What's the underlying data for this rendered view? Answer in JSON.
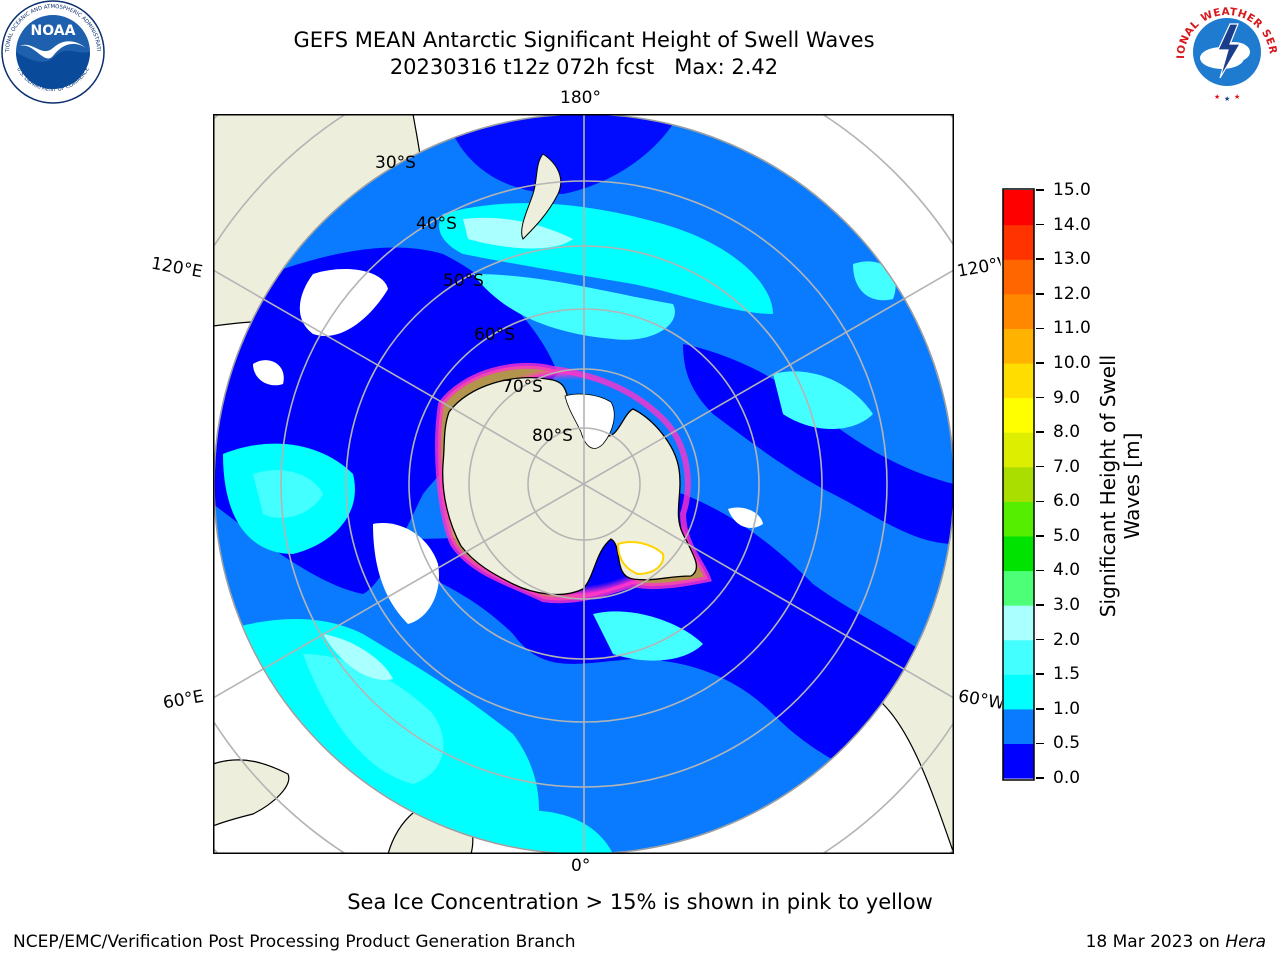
{
  "title": {
    "line1": "GEFS MEAN Antarctic Significant Height of Swell Waves",
    "line2": "20230316 t12z 072h fcst   Max: 2.42"
  },
  "map": {
    "projection": "south-polar-stereographic",
    "lon_labels": {
      "top": "180°",
      "bottom": "0°",
      "upper_left": "120°E",
      "lower_left": "60°E",
      "upper_right": "120°W",
      "lower_right": "60°W"
    },
    "lat_labels": [
      "30°S",
      "40°S",
      "50°S",
      "60°S",
      "70°S",
      "80°S"
    ],
    "colors": {
      "land": "#EEEEDC",
      "ice": "#FFFFFF",
      "grid": "#B4B4B4",
      "sea_ice_low": "#FF33CC",
      "sea_ice_high": "#FFD400"
    }
  },
  "colorbar": {
    "label_line1": "Significant Height of Swell",
    "label_line2": "Waves [m]",
    "ticks": [
      "0.0",
      "0.5",
      "1.0",
      "1.5",
      "2.0",
      "3.0",
      "4.0",
      "5.0",
      "6.0",
      "7.0",
      "8.0",
      "9.0",
      "10.0",
      "11.0",
      "12.0",
      "13.0",
      "14.0",
      "15.0"
    ],
    "colors": [
      "#0000FF",
      "#0A7BFF",
      "#00FFFF",
      "#44FFFF",
      "#AAFFFF",
      "#4DFF77",
      "#00E300",
      "#55EE00",
      "#AADD00",
      "#DDEE00",
      "#FFFF00",
      "#FFDD00",
      "#FFB300",
      "#FF8800",
      "#FF6600",
      "#FF3300",
      "#FF0000"
    ]
  },
  "subtitle": "Sea Ice Concentration > 15% is shown in pink to yellow",
  "footer": {
    "left": "NCEP/EMC/Verification Post Processing Product Generation Branch",
    "date": "18 Mar 2023 on ",
    "host": "Hera"
  },
  "logos": {
    "noaa": {
      "text": "NOAA",
      "ring_text": "NATIONAL OCEANIC AND ATMOSPHERIC ADMINISTRATION",
      "bottom_text": "U.S. DEPARTMENT OF COMMERCE"
    },
    "nws": {
      "ring_text": "NATIONAL WEATHER SERVICE"
    }
  }
}
